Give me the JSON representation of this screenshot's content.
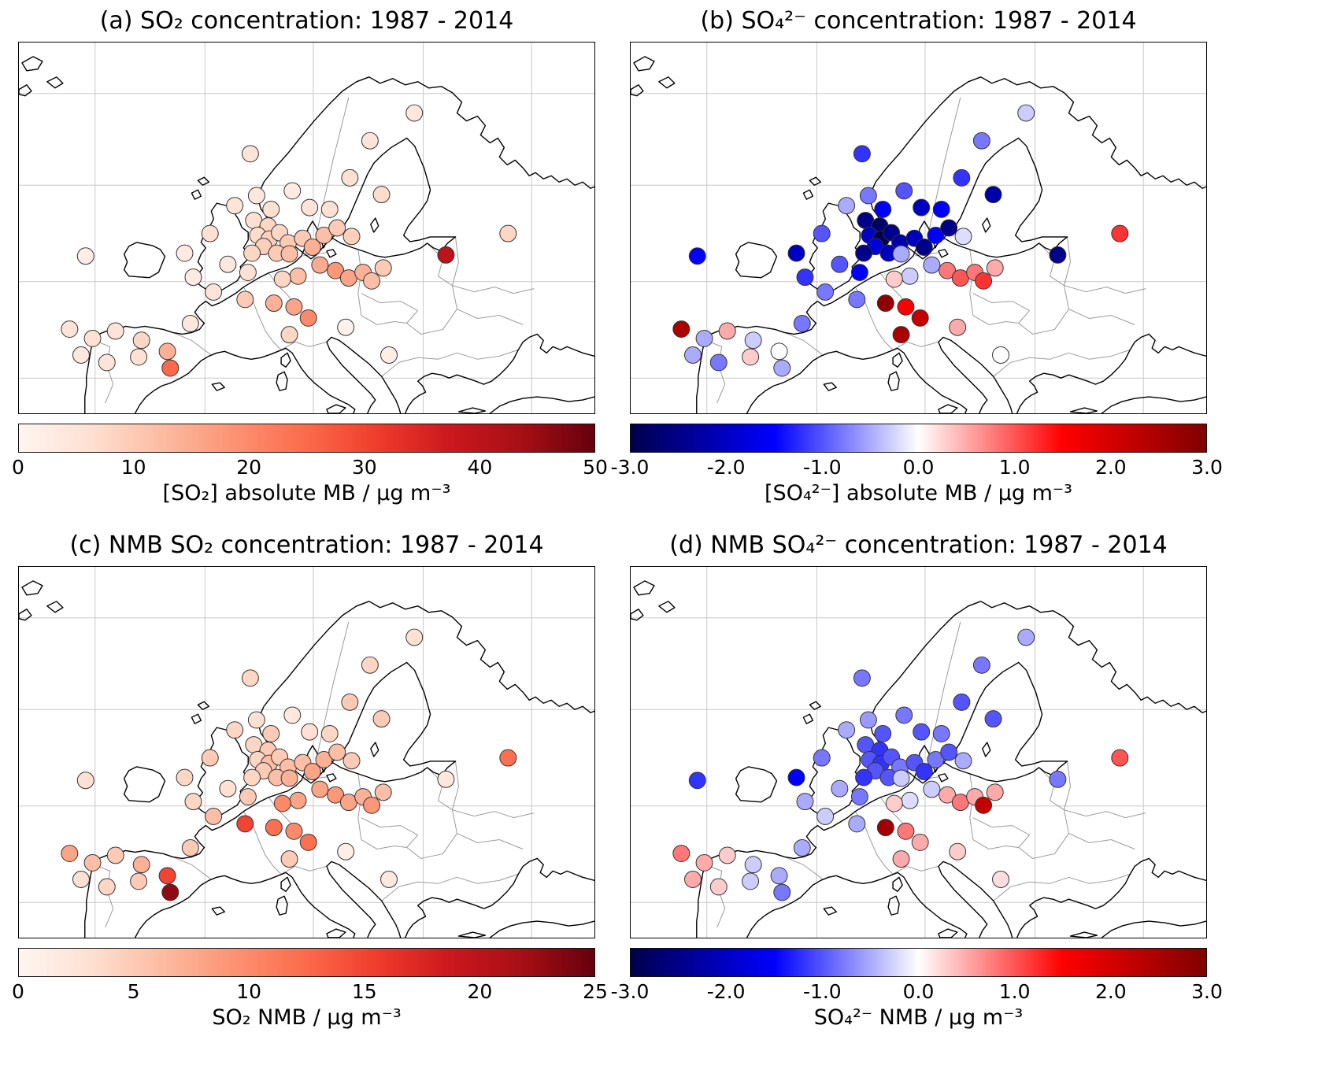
{
  "stations_xy_percent": [
    [
      11.6,
      57.6
    ],
    [
      40.2,
      30.0
    ],
    [
      41.3,
      41.3
    ],
    [
      43.8,
      45.0
    ],
    [
      47.5,
      40.0
    ],
    [
      50.5,
      44.5
    ],
    [
      54.0,
      45.0
    ],
    [
      68.7,
      19.0
    ],
    [
      61.0,
      26.5
    ],
    [
      57.5,
      36.5
    ],
    [
      63.0,
      41.0
    ],
    [
      85.0,
      51.5
    ],
    [
      40.8,
      48.0
    ],
    [
      43.3,
      49.5
    ],
    [
      41.5,
      52.0
    ],
    [
      43.5,
      53.0
    ],
    [
      45.3,
      51.3
    ],
    [
      46.8,
      54.0
    ],
    [
      42.5,
      55.0
    ],
    [
      40.5,
      56.8
    ],
    [
      44.8,
      56.8
    ],
    [
      47.0,
      57.0
    ],
    [
      49.3,
      52.8
    ],
    [
      51.0,
      55.2
    ],
    [
      53.0,
      52.0
    ],
    [
      55.3,
      50.0
    ],
    [
      57.8,
      52.3
    ],
    [
      74.2,
      57.3
    ],
    [
      52.3,
      60.0
    ],
    [
      55.0,
      61.5
    ],
    [
      57.3,
      63.5
    ],
    [
      59.8,
      62.0
    ],
    [
      61.3,
      64.3
    ],
    [
      63.3,
      60.8
    ],
    [
      48.5,
      63.0
    ],
    [
      45.8,
      63.8
    ],
    [
      39.8,
      62.0
    ],
    [
      36.3,
      59.8
    ],
    [
      30.3,
      63.3
    ],
    [
      33.8,
      67.3
    ],
    [
      39.3,
      69.3
    ],
    [
      44.3,
      70.3
    ],
    [
      47.8,
      71.3
    ],
    [
      50.3,
      74.3
    ],
    [
      47.0,
      78.8
    ],
    [
      8.8,
      77.3
    ],
    [
      12.8,
      79.8
    ],
    [
      16.8,
      77.8
    ],
    [
      21.3,
      80.3
    ],
    [
      10.8,
      84.3
    ],
    [
      15.3,
      86.3
    ],
    [
      20.8,
      84.8
    ],
    [
      25.8,
      83.3
    ],
    [
      26.3,
      87.8
    ],
    [
      29.8,
      75.8
    ],
    [
      64.3,
      84.3
    ],
    [
      56.8,
      76.8
    ],
    [
      28.8,
      56.8
    ],
    [
      33.2,
      51.5
    ],
    [
      37.5,
      44.0
    ]
  ],
  "chart_data": [
    {
      "panel": "a",
      "type": "scatter",
      "projection": "europe-map",
      "title": "(a) SO₂ concentration: 1987 - 2014",
      "colormap": "Reds",
      "vmin": 0,
      "vmax": 50,
      "colorbar_ticks": [
        "0",
        "10",
        "20",
        "30",
        "40",
        "50"
      ],
      "colorbar_label": "[SO₂] absolute MB / µg m⁻³",
      "values": [
        2,
        5,
        4,
        6,
        3,
        5,
        6,
        4,
        5,
        6,
        7,
        8,
        6,
        8,
        7,
        9,
        8,
        10,
        9,
        8,
        10,
        12,
        10,
        14,
        12,
        10,
        9,
        40,
        15,
        18,
        16,
        14,
        12,
        10,
        12,
        8,
        6,
        4,
        3,
        5,
        10,
        14,
        16,
        20,
        8,
        5,
        6,
        5,
        8,
        4,
        5,
        6,
        14,
        25,
        4,
        2,
        1,
        3,
        6,
        5
      ]
    },
    {
      "panel": "b",
      "type": "scatter",
      "projection": "europe-map",
      "title": "(b) SO₄²⁻ concentration: 1987 - 2014",
      "colormap": "seismic",
      "vmin": -3,
      "vmax": 3,
      "colorbar_ticks": [
        "-3.0",
        "-2.0",
        "-1.0",
        "0.0",
        "1.0",
        "2.0",
        "3.0"
      ],
      "colorbar_label": "[SO₄²⁻] absolute MB / µg m⁻³",
      "values": [
        -1.5,
        -1.2,
        -0.8,
        -1.5,
        -1.0,
        -2.0,
        -1.5,
        -0.3,
        -0.8,
        -1.2,
        -2.2,
        1.2,
        -2.5,
        -2.8,
        -2.0,
        -3.0,
        -2.5,
        -2.2,
        -1.8,
        -2.5,
        -2.0,
        -0.5,
        -2.0,
        -2.5,
        -1.5,
        -2.5,
        -0.2,
        -2.5,
        -0.5,
        0.8,
        1.0,
        0.8,
        1.2,
        0.5,
        -0.3,
        0.3,
        -1.5,
        -1.0,
        -1.2,
        -0.8,
        -0.8,
        2.8,
        1.5,
        2.2,
        2.5,
        2.5,
        -0.5,
        0.5,
        -0.3,
        -0.5,
        -0.8,
        0.3,
        0.0,
        -0.5,
        -0.8,
        0.0,
        0.5,
        -2.0,
        -1.0,
        -0.5
      ]
    },
    {
      "panel": "c",
      "type": "scatter",
      "projection": "europe-map",
      "title": "(c) NMB SO₂ concentration: 1987 - 2014",
      "colormap": "Reds",
      "vmin": 0,
      "vmax": 25,
      "colorbar_ticks": [
        "0",
        "5",
        "10",
        "15",
        "20",
        "25"
      ],
      "colorbar_label": "SO₂ NMB / µg m⁻³",
      "values": [
        3,
        4,
        3,
        5,
        2,
        3,
        4,
        3,
        4,
        5,
        5,
        12,
        4,
        5,
        4,
        6,
        5,
        6,
        5,
        4,
        6,
        7,
        6,
        8,
        7,
        6,
        5,
        2,
        8,
        9,
        8,
        7,
        9,
        6,
        8,
        10,
        5,
        3,
        4,
        6,
        15,
        12,
        10,
        12,
        5,
        8,
        6,
        5,
        7,
        3,
        4,
        5,
        15,
        23,
        5,
        2,
        1,
        4,
        5,
        4
      ]
    },
    {
      "panel": "d",
      "type": "scatter",
      "projection": "europe-map",
      "title": "(d) NMB SO₄²⁻ concentration: 1987 - 2014",
      "colormap": "seismic",
      "vmin": -3,
      "vmax": 3,
      "colorbar_ticks": [
        "-3.0",
        "-2.0",
        "-1.0",
        "0.0",
        "1.0",
        "2.0",
        "3.0"
      ],
      "colorbar_label": "SO₄²⁻ NMB / µg m⁻³",
      "values": [
        -1.2,
        -0.8,
        -0.6,
        -1.0,
        -0.8,
        -1.0,
        -0.8,
        -0.5,
        -0.8,
        -1.0,
        -1.0,
        1.0,
        -1.0,
        -1.2,
        -1.0,
        -1.2,
        -1.0,
        -0.8,
        -1.0,
        -1.2,
        -1.0,
        -0.3,
        -1.0,
        -1.2,
        -0.8,
        -1.0,
        -0.5,
        -0.8,
        -0.3,
        0.5,
        0.8,
        0.5,
        2.2,
        0.5,
        -0.2,
        0.3,
        -0.8,
        -0.5,
        -0.5,
        -0.3,
        -0.5,
        2.6,
        0.8,
        0.5,
        0.5,
        0.8,
        0.5,
        0.3,
        -0.3,
        0.5,
        0.3,
        -0.3,
        -0.5,
        -0.8,
        -0.5,
        0.2,
        0.3,
        -1.5,
        -0.8,
        -0.5
      ]
    }
  ],
  "colors": {
    "reds_max": "#67000d",
    "seismic_min": "#00004c",
    "seismic_max": "#800000",
    "coastline": "#000000",
    "country_borders": "#9a9a9a",
    "gridlines": "#c8c8c8"
  }
}
